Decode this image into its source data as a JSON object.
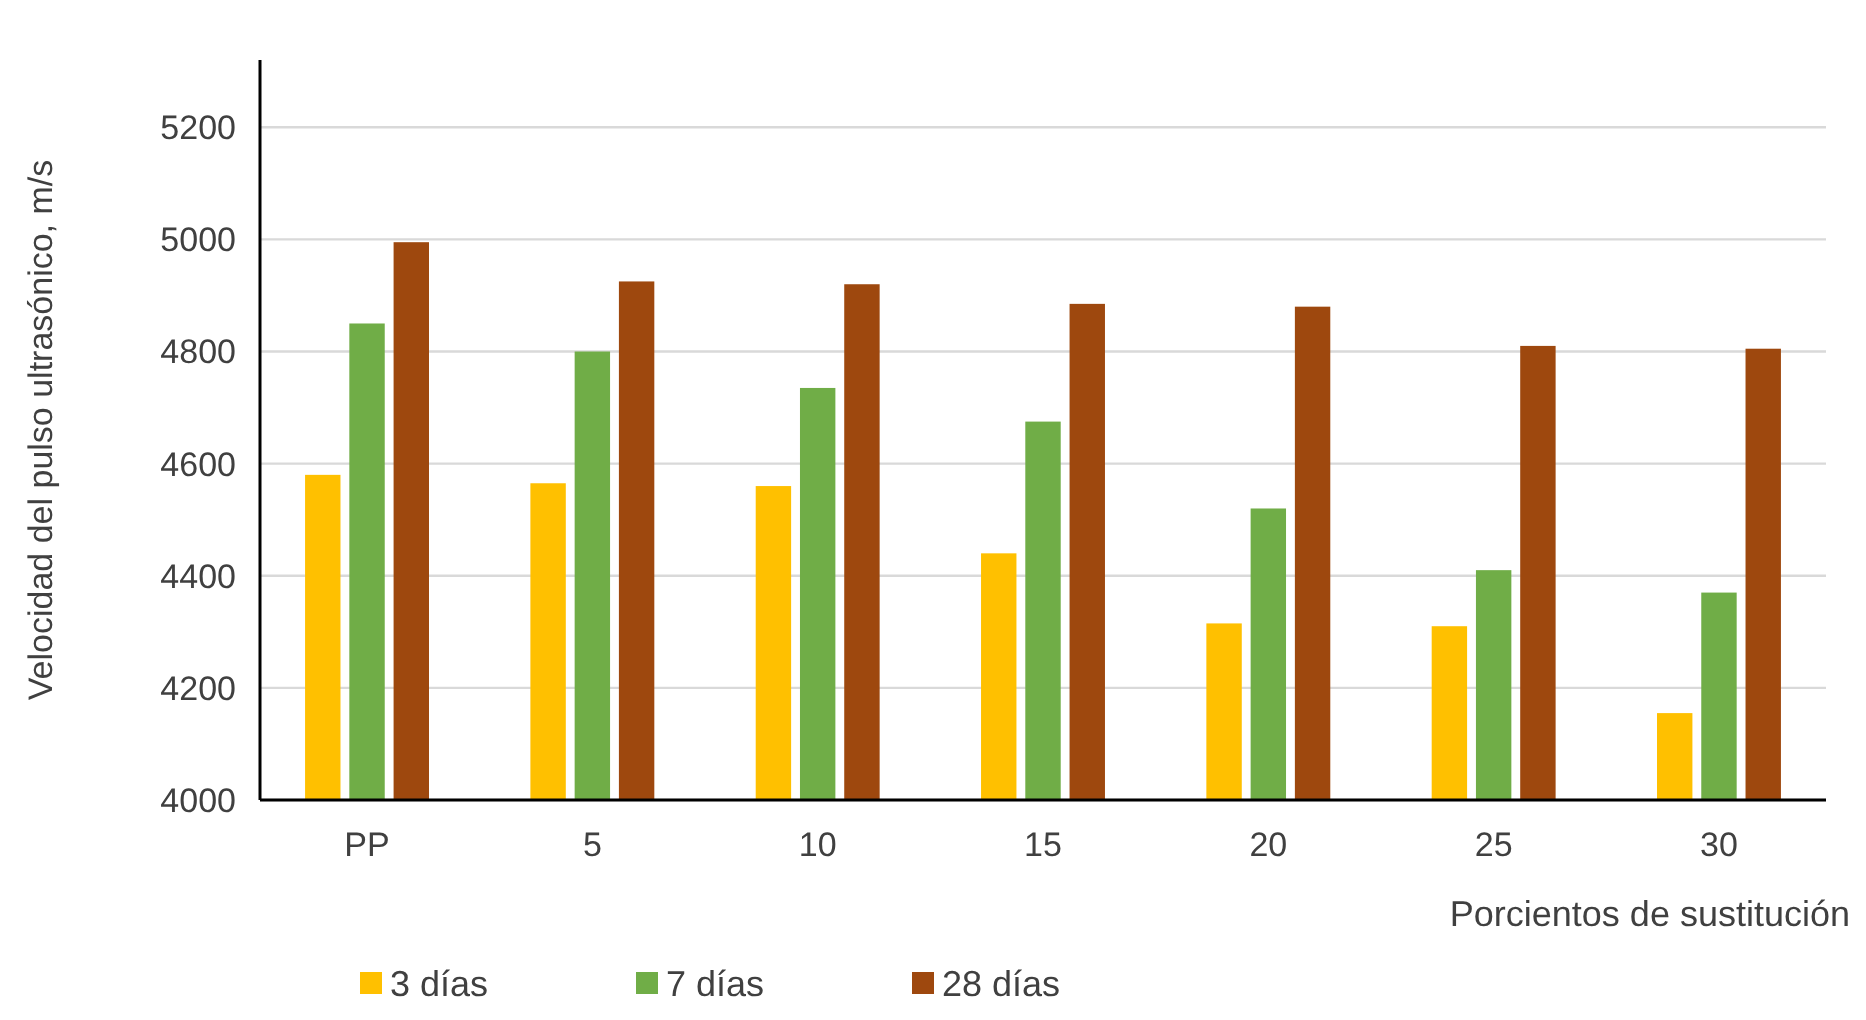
{
  "chart_data": {
    "type": "bar",
    "xlabel": "Porcientos de sustitución",
    "ylabel": "Velocidad del pulso ultrasónico, m/s",
    "categories": [
      "PP",
      "5",
      "10",
      "15",
      "20",
      "25",
      "30"
    ],
    "series": [
      {
        "name": "3 días",
        "color": "#ffc000",
        "values": [
          4580,
          4565,
          4560,
          4440,
          4315,
          4310,
          4155
        ]
      },
      {
        "name": "7 días",
        "color": "#70ad47",
        "values": [
          4850,
          4800,
          4735,
          4675,
          4520,
          4410,
          4370
        ]
      },
      {
        "name": "28 días",
        "color": "#9e480e",
        "values": [
          4995,
          4925,
          4920,
          4885,
          4880,
          4810,
          4805
        ]
      }
    ],
    "ylim": [
      4000,
      5320
    ],
    "yticks": [
      4000,
      4200,
      4400,
      4600,
      4800,
      5000,
      5200
    ],
    "grid": "y",
    "legend": "bottom left"
  }
}
